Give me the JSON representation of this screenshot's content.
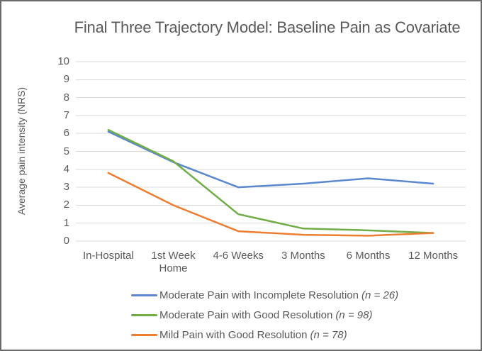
{
  "frame": {
    "border_color": "#6b6b6b",
    "background_color": "#ffffff",
    "text_color": "#595959",
    "gridline_color": "#d9d9d9"
  },
  "chart_data": {
    "type": "line",
    "title": "Final Three Trajectory Model: Baseline Pain as Covariate",
    "xlabel": "",
    "ylabel": "Average pain intensity (NRS)",
    "ylim": [
      0,
      10
    ],
    "y_ticks": [
      0,
      1,
      2,
      3,
      4,
      5,
      6,
      7,
      8,
      9,
      10
    ],
    "grid": "horizontal",
    "legend_position": "bottom-left",
    "categories": [
      "In-Hospital",
      "1st Week Home",
      "4-6 Weeks",
      "3 Months",
      "6 Months",
      "12 Months"
    ],
    "series": [
      {
        "label": "Moderate Pain with Incomplete Resolution",
        "n_label": "(n = 26)",
        "color": "#5B87CE",
        "values": [
          6.1,
          4.4,
          3.0,
          3.2,
          3.5,
          3.2
        ]
      },
      {
        "label": "Moderate Pain with Good Resolution",
        "n_label": "(n = 98)",
        "color": "#70AD47",
        "values": [
          6.2,
          4.45,
          1.5,
          0.7,
          0.6,
          0.45
        ]
      },
      {
        "label": "Mild Pain with Good Resolution",
        "n_label": "(n = 78)",
        "color": "#ED7D31",
        "values": [
          3.8,
          2.0,
          0.55,
          0.35,
          0.3,
          0.45
        ]
      }
    ]
  }
}
